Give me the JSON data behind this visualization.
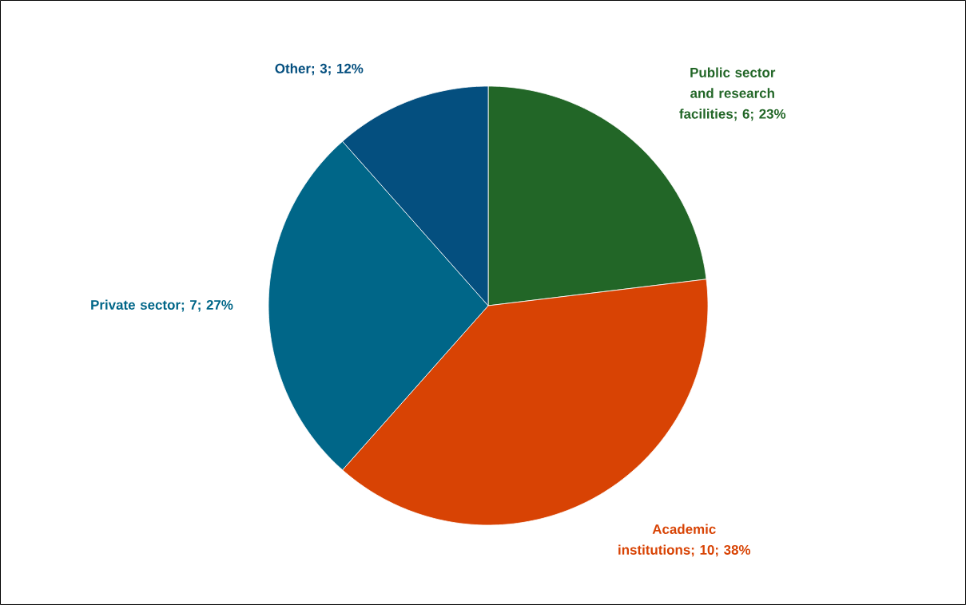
{
  "chart_data": {
    "type": "pie",
    "categories": [
      "Public sector and research facilities",
      "Academic institutions",
      "Private sector",
      "Other"
    ],
    "values": [
      6,
      10,
      7,
      3
    ],
    "value_labels": [
      "; 6; 23%",
      "; 10; 38%",
      "; 7; 27%",
      "; 3; 12%"
    ],
    "colors": [
      "#226627",
      "#d84304",
      "#006688",
      "#044f7f"
    ]
  }
}
